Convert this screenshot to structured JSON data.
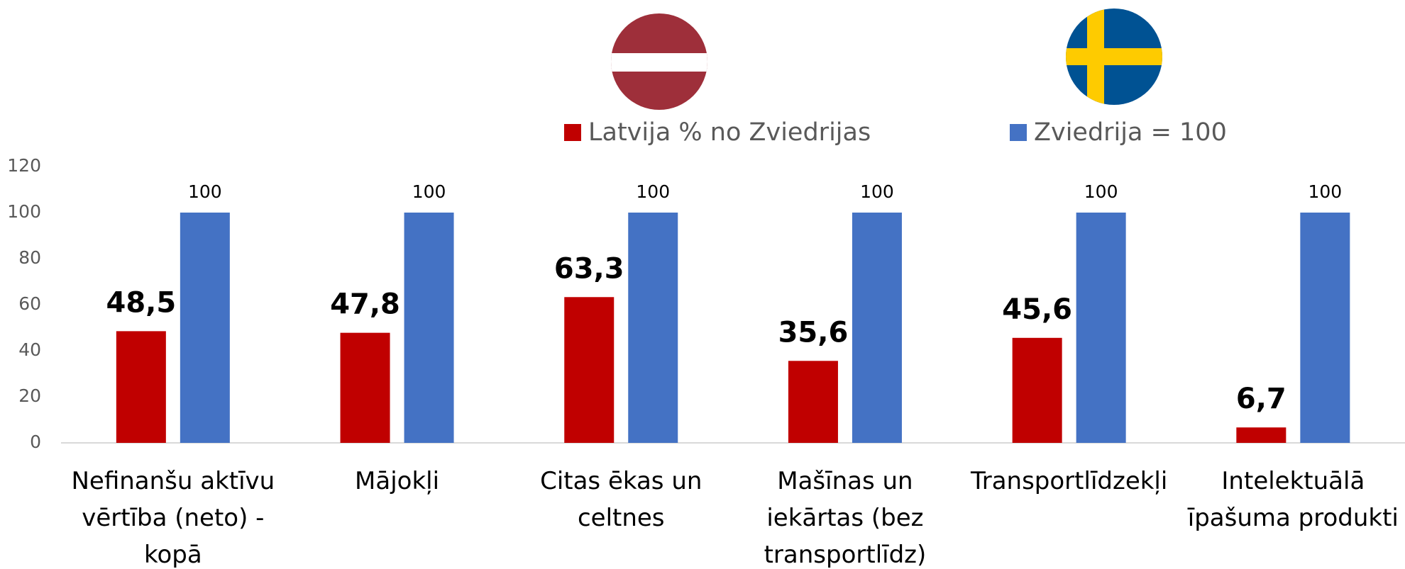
{
  "chart_data": {
    "type": "bar",
    "categories": [
      "Nefinanšu aktīvu vērtība (neto) - kopā",
      "Mājokļi",
      "Citas ēkas un celtnes",
      "Mašīnas un iekārtas (bez transportlīdz)",
      "Transportlīdzekļi",
      "Intelektuālā īpašuma produkti"
    ],
    "series": [
      {
        "name": "Latvija % no Zviedrijas",
        "color": "#c00000",
        "values": [
          48.5,
          47.8,
          63.3,
          35.6,
          45.6,
          6.7
        ],
        "value_labels": [
          "48,5",
          "47,8",
          "63,3",
          "35,6",
          "45,6",
          "6,7"
        ]
      },
      {
        "name": "Zviedrija = 100",
        "color": "#4472c4",
        "values": [
          100,
          100,
          100,
          100,
          100,
          100
        ]
      }
    ],
    "ylim": [
      0,
      120
    ],
    "yticks": [
      0,
      20,
      40,
      60,
      80,
      100,
      120
    ],
    "grid": false
  }
}
